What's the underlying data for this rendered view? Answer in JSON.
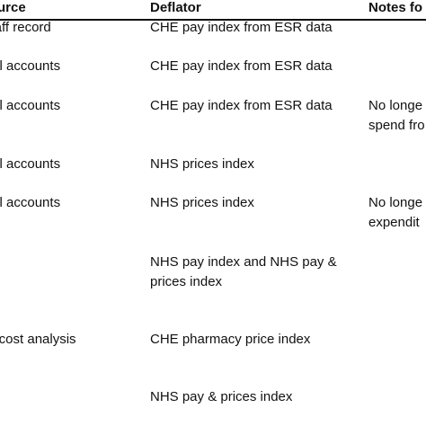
{
  "headers": {
    "source": "urce",
    "deflator": "Deflator",
    "notes": "Notes fo"
  },
  "rows": [
    {
      "source": "ic staff record",
      "deflator": "CHE pay index from ESR data",
      "notes": ""
    },
    {
      "source": "tional accounts",
      "deflator": "CHE pay index from ESR data",
      "notes": ""
    },
    {
      "source": "tional accounts",
      "deflator": "CHE pay index from ESR data",
      "notes": [
        "No longe",
        "spend fro"
      ]
    },
    {
      "source": "tional accounts",
      "deflator": "NHS prices index",
      "notes": ""
    },
    {
      "source": "tional accounts",
      "deflator": "NHS prices index",
      "notes": [
        "No longe",
        "expendit"
      ]
    },
    {
      "source": "",
      "deflator": [
        "NHS pay index and NHS pay &",
        "prices index"
      ],
      "notes": ""
    },
    {
      "source": "ition cost analysis",
      "deflator": "CHE pharmacy price index",
      "notes": ""
    },
    {
      "source": "",
      "deflator": "NHS pay & prices index",
      "notes": ""
    }
  ]
}
